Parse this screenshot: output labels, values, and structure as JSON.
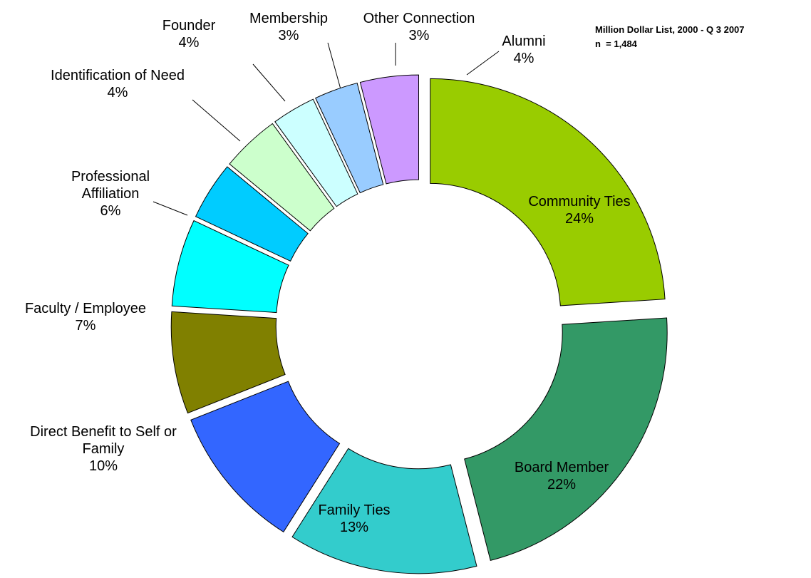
{
  "chart_data": {
    "type": "donut",
    "title": "Million Dollar List, 2000 - Q 3 2007",
    "subtitle": "n  = 1,484",
    "categories": [
      "Community Ties",
      "Board Member",
      "Family Ties",
      "Direct Benefit to Self or Family",
      "Faculty / Employee",
      "Professional Affiliation",
      "Identification of Need",
      "Founder",
      "Membership",
      "Other Connection",
      "Alumni"
    ],
    "values": [
      24,
      22,
      13,
      10,
      7,
      6,
      4,
      4,
      3,
      3,
      4
    ],
    "value_labels": [
      "24%",
      "22%",
      "13%",
      "10%",
      "7%",
      "6%",
      "4%",
      "4%",
      "3%",
      "3%",
      "4%"
    ],
    "colors": [
      "#99cc00",
      "#339966",
      "#33cccc",
      "#3366ff",
      "#808000",
      "#00ffff",
      "#00ccff",
      "#ccffcc",
      "#ccffff",
      "#99ccff",
      "#cc99ff"
    ]
  }
}
